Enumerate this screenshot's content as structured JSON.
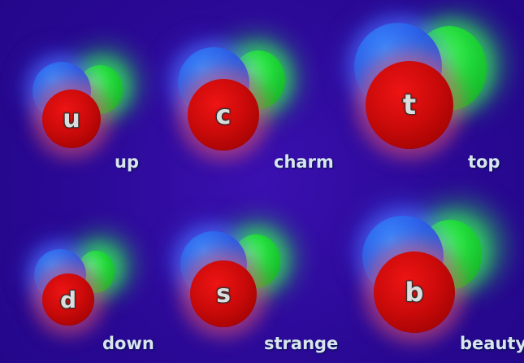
{
  "quarks": [
    {
      "symbol": "u",
      "name": "up"
    },
    {
      "symbol": "c",
      "name": "charm"
    },
    {
      "symbol": "t",
      "name": "top"
    },
    {
      "symbol": "d",
      "name": "down"
    },
    {
      "symbol": "s",
      "name": "strange"
    },
    {
      "symbol": "b",
      "name": "beauty"
    }
  ],
  "colors": {
    "background": "#2b0a9a",
    "red": "#cc0a0a",
    "green": "#20d83a",
    "blue": "#2a5be8",
    "label": "#d8e4f0"
  }
}
